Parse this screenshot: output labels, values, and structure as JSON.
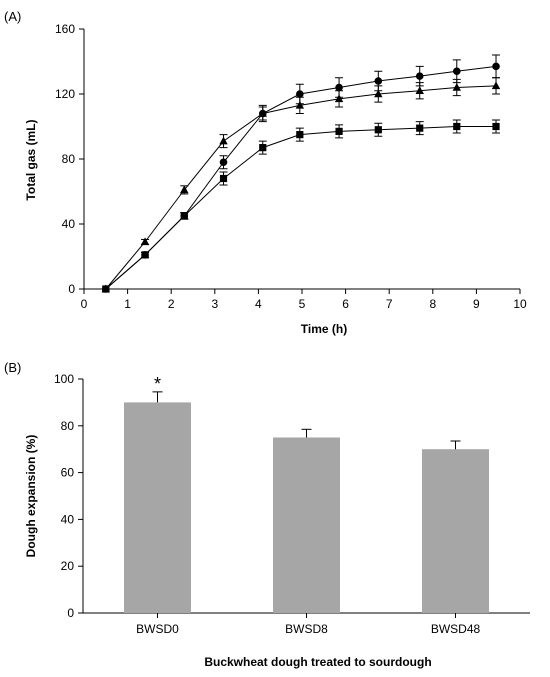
{
  "chart_data": [
    {
      "type": "line",
      "panel_label": "(A)",
      "xlabel": "Time (h)",
      "ylabel": "Total gas (mL)",
      "xlim": [
        0,
        10
      ],
      "ylim": [
        0,
        160
      ],
      "xticks": [
        "0",
        "1",
        "2",
        "3",
        "4",
        "5",
        "6",
        "7",
        "8",
        "9",
        "10"
      ],
      "yticks": [
        "0",
        "40",
        "80",
        "120",
        "160"
      ],
      "grid": false,
      "legend": "none",
      "series": [
        {
          "marker": "circle",
          "x": [
            0.5,
            1.4,
            2.3,
            3.2,
            4.1,
            4.95,
            5.85,
            6.75,
            7.7,
            8.55,
            9.45
          ],
          "y": [
            0,
            21,
            45,
            78,
            108,
            120,
            124,
            128,
            131,
            134,
            137
          ],
          "err": [
            0,
            1.5,
            2,
            4,
            5,
            6,
            6,
            6,
            6,
            7,
            7
          ]
        },
        {
          "marker": "triangle",
          "x": [
            0.5,
            1.4,
            2.3,
            3.2,
            4.1,
            4.95,
            5.85,
            6.75,
            7.7,
            8.55,
            9.45
          ],
          "y": [
            0,
            29,
            61,
            91,
            108,
            113,
            117,
            120,
            122,
            124,
            125
          ],
          "err": [
            0,
            1.5,
            2.5,
            4,
            4,
            5,
            5,
            5,
            5,
            5,
            5
          ]
        },
        {
          "marker": "square",
          "x": [
            0.5,
            1.4,
            2.3,
            3.2,
            4.1,
            4.95,
            5.85,
            6.75,
            7.7,
            8.55,
            9.45
          ],
          "y": [
            0,
            21,
            45,
            68,
            87,
            95,
            97,
            98,
            99,
            100,
            100
          ],
          "err": [
            0,
            1.5,
            2,
            4,
            4,
            4,
            4,
            4,
            4,
            4,
            4
          ]
        }
      ]
    },
    {
      "type": "bar",
      "panel_label": "(B)",
      "xlabel": "Buckwheat dough treated to sourdough",
      "ylabel": "Dough expansion (%)",
      "categories": [
        "BWSD0",
        "BWSD8",
        "BWSD48"
      ],
      "values": [
        90,
        75,
        70
      ],
      "err": [
        4.5,
        3.5,
        3.5
      ],
      "annotations": [
        "*",
        "",
        ""
      ],
      "ylim": [
        0,
        100
      ],
      "yticks": [
        "0",
        "20",
        "40",
        "60",
        "80",
        "100"
      ],
      "bar_color": "#a6a6a6",
      "grid": false
    }
  ]
}
